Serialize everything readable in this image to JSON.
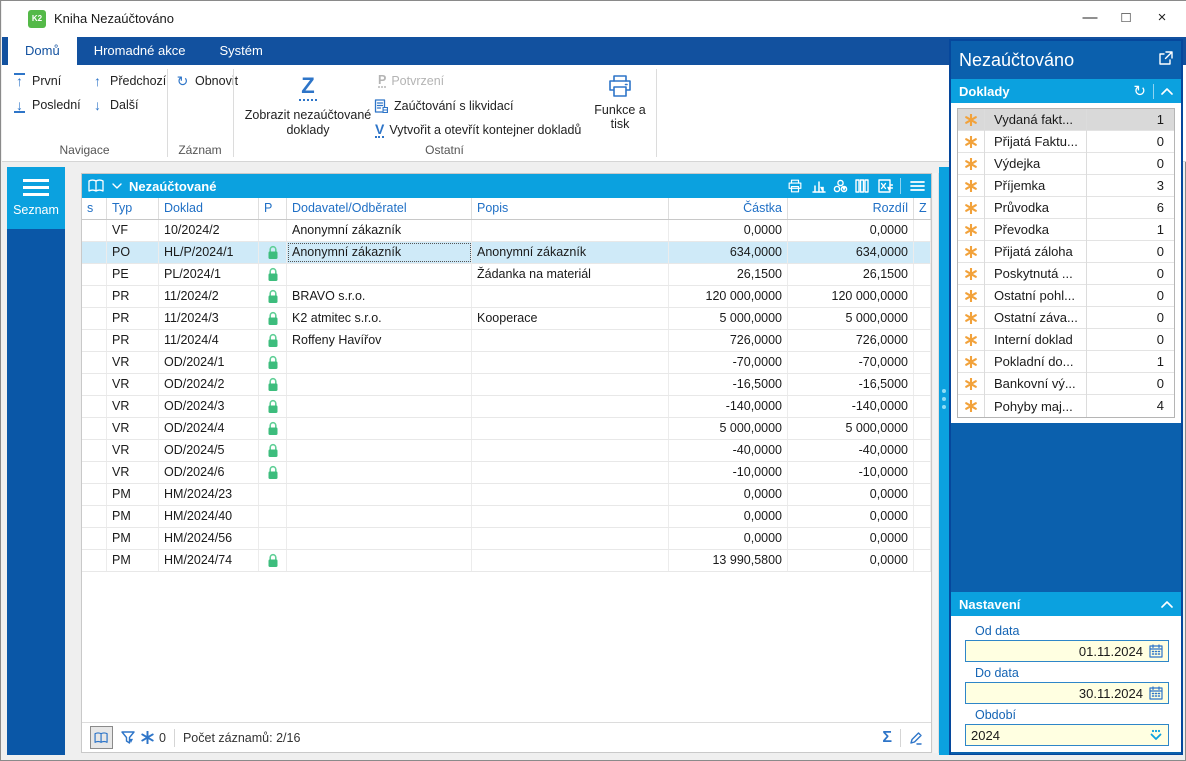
{
  "window": {
    "title": "Kniha Nezaúčtováno",
    "app_badge": "K2",
    "minimize": "—",
    "maximize": "□",
    "close": "×"
  },
  "ribbon": {
    "tabs": [
      {
        "label": "Domů",
        "active": true
      },
      {
        "label": "Hromadné akce",
        "active": false
      },
      {
        "label": "Systém",
        "active": false
      }
    ],
    "nav": {
      "first": "První",
      "previous": "Předchozí",
      "last": "Poslední",
      "next": "Další"
    },
    "record": {
      "refresh": "Obnovit"
    },
    "other": {
      "show_unposted": "Zobrazit nezaúčtované doklady",
      "show_unposted_icon": "Z",
      "confirm": "Potvrzení",
      "confirm_icon": "P",
      "posting_liquidation": "Zaúčtování s likvidací",
      "create_container": "Vytvořit a otevřít kontejner dokladů",
      "create_container_icon": "V",
      "functions_print": "Funkce a tisk"
    },
    "group_labels": {
      "navigace": "Navigace",
      "zaznam": "Záznam",
      "ostatni": "Ostatní"
    }
  },
  "sidebar": {
    "tab": "Seznam"
  },
  "grid": {
    "title": "Nezaúčtované",
    "toolbar_icons": [
      "open-book",
      "chevron-down",
      "printer",
      "chart",
      "modules",
      "columns",
      "excel-export",
      "menu"
    ],
    "columns": [
      "s",
      "Typ",
      "Doklad",
      "P",
      "Dodavatel/Odběratel",
      "Popis",
      "Částka",
      "Rozdíl",
      "Z"
    ],
    "rows": [
      {
        "typ": "VF",
        "doklad": "10/2024/2",
        "locked": false,
        "dodavatel": "Anonymní zákazník",
        "popis": "",
        "castka": "0,0000",
        "rozdil": "0,0000",
        "selected": false
      },
      {
        "typ": "PO",
        "doklad": "HL/P/2024/1",
        "locked": true,
        "dodavatel": "Anonymní zákazník",
        "popis": "Anonymní zákazník",
        "castka": "634,0000",
        "rozdil": "634,0000",
        "selected": true
      },
      {
        "typ": "PE",
        "doklad": "PL/2024/1",
        "locked": true,
        "dodavatel": "",
        "popis": "Žádanka na materiál",
        "castka": "26,1500",
        "rozdil": "26,1500",
        "selected": false
      },
      {
        "typ": "PR",
        "doklad": "11/2024/2",
        "locked": true,
        "dodavatel": "BRAVO s.r.o.",
        "popis": "",
        "castka": "120 000,0000",
        "rozdil": "120 000,0000",
        "selected": false
      },
      {
        "typ": "PR",
        "doklad": "11/2024/3",
        "locked": true,
        "dodavatel": "K2 atmitec s.r.o.",
        "popis": "Kooperace",
        "castka": "5 000,0000",
        "rozdil": "5 000,0000",
        "selected": false
      },
      {
        "typ": "PR",
        "doklad": "11/2024/4",
        "locked": true,
        "dodavatel": "Roffeny Havířov",
        "popis": "",
        "castka": "726,0000",
        "rozdil": "726,0000",
        "selected": false
      },
      {
        "typ": "VR",
        "doklad": "OD/2024/1",
        "locked": true,
        "dodavatel": "",
        "popis": "",
        "castka": "-70,0000",
        "rozdil": "-70,0000",
        "selected": false
      },
      {
        "typ": "VR",
        "doklad": "OD/2024/2",
        "locked": true,
        "dodavatel": "",
        "popis": "",
        "castka": "-16,5000",
        "rozdil": "-16,5000",
        "selected": false
      },
      {
        "typ": "VR",
        "doklad": "OD/2024/3",
        "locked": true,
        "dodavatel": "",
        "popis": "",
        "castka": "-140,0000",
        "rozdil": "-140,0000",
        "selected": false
      },
      {
        "typ": "VR",
        "doklad": "OD/2024/4",
        "locked": true,
        "dodavatel": "",
        "popis": "",
        "castka": "5 000,0000",
        "rozdil": "5 000,0000",
        "selected": false
      },
      {
        "typ": "VR",
        "doklad": "OD/2024/5",
        "locked": true,
        "dodavatel": "",
        "popis": "",
        "castka": "-40,0000",
        "rozdil": "-40,0000",
        "selected": false
      },
      {
        "typ": "VR",
        "doklad": "OD/2024/6",
        "locked": true,
        "dodavatel": "",
        "popis": "",
        "castka": "-10,0000",
        "rozdil": "-10,0000",
        "selected": false
      },
      {
        "typ": "PM",
        "doklad": "HM/2024/23",
        "locked": false,
        "dodavatel": "",
        "popis": "",
        "castka": "0,0000",
        "rozdil": "0,0000",
        "selected": false
      },
      {
        "typ": "PM",
        "doklad": "HM/2024/40",
        "locked": false,
        "dodavatel": "",
        "popis": "",
        "castka": "0,0000",
        "rozdil": "0,0000",
        "selected": false
      },
      {
        "typ": "PM",
        "doklad": "HM/2024/56",
        "locked": false,
        "dodavatel": "",
        "popis": "",
        "castka": "0,0000",
        "rozdil": "0,0000",
        "selected": false
      },
      {
        "typ": "PM",
        "doklad": "HM/2024/74",
        "locked": true,
        "dodavatel": "",
        "popis": "",
        "castka": "13 990,5800",
        "rozdil": "0,0000",
        "selected": false
      }
    ],
    "status": {
      "filter_count": "0",
      "records": "Počet záznamů: 2/16"
    }
  },
  "panel": {
    "title": "Nezaúčtováno",
    "doklady": {
      "title": "Doklady",
      "items": [
        {
          "label": "Vydaná fakt...",
          "count": "1",
          "selected": true
        },
        {
          "label": "Přijatá Faktu...",
          "count": "0",
          "selected": false
        },
        {
          "label": "Výdejka",
          "count": "0",
          "selected": false
        },
        {
          "label": "Příjemka",
          "count": "3",
          "selected": false
        },
        {
          "label": "Průvodka",
          "count": "6",
          "selected": false
        },
        {
          "label": "Převodka",
          "count": "1",
          "selected": false
        },
        {
          "label": "Přijatá záloha",
          "count": "0",
          "selected": false
        },
        {
          "label": "Poskytnutá ...",
          "count": "0",
          "selected": false
        },
        {
          "label": "Ostatní pohl...",
          "count": "0",
          "selected": false
        },
        {
          "label": "Ostatní záva...",
          "count": "0",
          "selected": false
        },
        {
          "label": "Interní doklad",
          "count": "0",
          "selected": false
        },
        {
          "label": "Pokladní do...",
          "count": "1",
          "selected": false
        },
        {
          "label": "Bankovní vý...",
          "count": "0",
          "selected": false
        },
        {
          "label": "Pohyby maj...",
          "count": "4",
          "selected": false
        }
      ]
    },
    "nastaveni": {
      "title": "Nastavení",
      "fields": [
        {
          "label": "Od data",
          "value": "01.11.2024",
          "type": "date"
        },
        {
          "label": "Do data",
          "value": "30.11.2024",
          "type": "date"
        },
        {
          "label": "Období",
          "value": "2024",
          "type": "select"
        }
      ]
    }
  },
  "colors": {
    "accent_cyan": "#0ba1df",
    "ribbon_blue": "#12519f",
    "panel_blue": "#0b60ad",
    "sidebar_blue": "#0a57a7",
    "selection_row": "#cfeaf8",
    "lock_green": "#3dbd7d",
    "asterisk_orange": "#f2a23b",
    "input_yellow": "#ffffe1",
    "header_text": "#1f6fc5"
  }
}
